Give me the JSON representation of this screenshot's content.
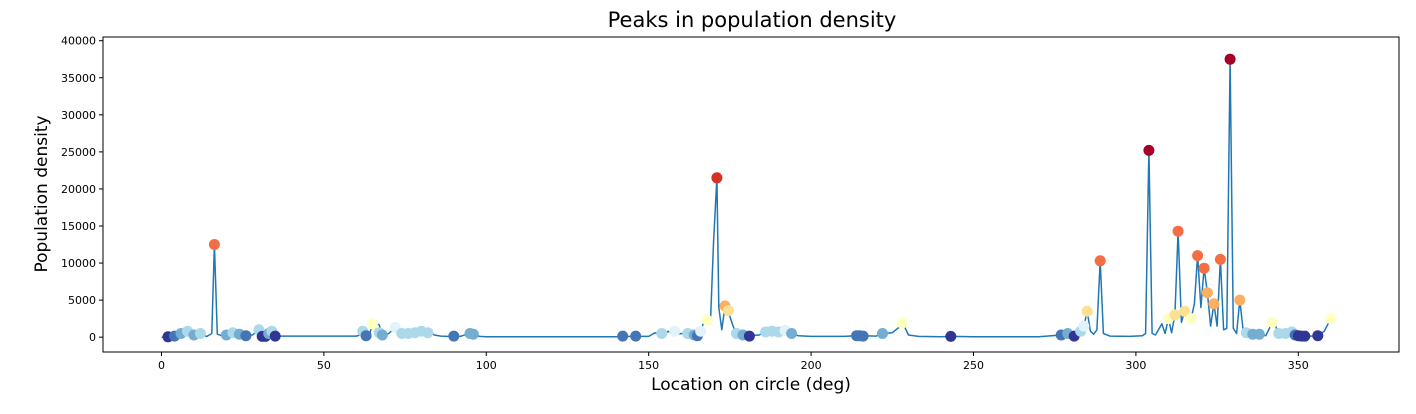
{
  "chart_data": {
    "type": "line",
    "title": "Peaks in population density",
    "xlabel": "Location on circle (deg)",
    "ylabel": "Population density",
    "xlim": [
      -18,
      381
    ],
    "ylim": [
      -2000,
      40500
    ],
    "x_ticks": [
      0,
      50,
      100,
      150,
      200,
      250,
      300,
      350
    ],
    "y_ticks": [
      0,
      5000,
      10000,
      15000,
      20000,
      25000,
      30000,
      35000,
      40000
    ],
    "grid": false,
    "line_color": "#1f77b4",
    "series": [
      {
        "values": [
          [
            0,
            0
          ],
          [
            2,
            100
          ],
          [
            4,
            200
          ],
          [
            6,
            600
          ],
          [
            8,
            400
          ],
          [
            10,
            150
          ],
          [
            12,
            300
          ],
          [
            14,
            100
          ],
          [
            15.5,
            500
          ],
          [
            16.3,
            12500
          ],
          [
            17.2,
            400
          ],
          [
            18.5,
            200
          ],
          [
            20,
            300
          ],
          [
            22,
            500
          ],
          [
            24,
            300
          ],
          [
            26,
            200
          ],
          [
            28,
            300
          ],
          [
            30,
            1000
          ],
          [
            31,
            100
          ],
          [
            33,
            200
          ],
          [
            34,
            800
          ],
          [
            35,
            100
          ],
          [
            36,
            150
          ],
          [
            60,
            150
          ],
          [
            62,
            400
          ],
          [
            64,
            300
          ],
          [
            65,
            1800
          ],
          [
            67,
            1700
          ],
          [
            68,
            300
          ],
          [
            70,
            500
          ],
          [
            72,
            1300
          ],
          [
            74,
            500
          ],
          [
            76,
            400
          ],
          [
            78,
            600
          ],
          [
            80,
            500
          ],
          [
            82,
            900
          ],
          [
            84,
            300
          ],
          [
            86,
            150
          ],
          [
            88,
            100
          ],
          [
            90,
            150
          ],
          [
            92,
            100
          ],
          [
            94,
            400
          ],
          [
            96,
            300
          ],
          [
            98,
            100
          ],
          [
            100,
            50
          ],
          [
            140,
            50
          ],
          [
            142,
            100
          ],
          [
            145,
            100
          ],
          [
            150,
            100
          ],
          [
            152,
            600
          ],
          [
            154,
            200
          ],
          [
            156,
            800
          ],
          [
            158,
            300
          ],
          [
            160,
            500
          ],
          [
            162,
            400
          ],
          [
            164,
            300
          ],
          [
            165,
            200
          ],
          [
            166,
            800
          ],
          [
            167,
            2100
          ],
          [
            168,
            2300
          ],
          [
            169,
            1800
          ],
          [
            170,
            13000
          ],
          [
            171,
            21500
          ],
          [
            171.6,
            4000
          ],
          [
            172.5,
            1000
          ],
          [
            173.5,
            4200
          ],
          [
            174.5,
            3600
          ],
          [
            175,
            2800
          ],
          [
            176,
            1500
          ],
          [
            177,
            400
          ],
          [
            179,
            300
          ],
          [
            181,
            200
          ],
          [
            184,
            300
          ],
          [
            186,
            700
          ],
          [
            188,
            800
          ],
          [
            190,
            600
          ],
          [
            192,
            900
          ],
          [
            194,
            500
          ],
          [
            196,
            200
          ],
          [
            200,
            100
          ],
          [
            210,
            100
          ],
          [
            214,
            200
          ],
          [
            216,
            200
          ],
          [
            220,
            150
          ],
          [
            222,
            500
          ],
          [
            225,
            600
          ],
          [
            227,
            1300
          ],
          [
            228,
            1900
          ],
          [
            229,
            1200
          ],
          [
            230,
            300
          ],
          [
            233,
            100
          ],
          [
            240,
            50
          ],
          [
            243,
            100
          ],
          [
            250,
            50
          ],
          [
            270,
            50
          ],
          [
            277,
            300
          ],
          [
            279,
            500
          ],
          [
            281,
            200
          ],
          [
            283,
            400
          ],
          [
            284,
            1500
          ],
          [
            285,
            3500
          ],
          [
            286,
            800
          ],
          [
            287,
            400
          ],
          [
            288,
            1000
          ],
          [
            289,
            10300
          ],
          [
            290,
            500
          ],
          [
            292,
            150
          ],
          [
            298,
            100
          ],
          [
            302,
            200
          ],
          [
            303,
            500
          ],
          [
            304,
            25200
          ],
          [
            305,
            500
          ],
          [
            306,
            300
          ],
          [
            308,
            1800
          ],
          [
            309,
            500
          ],
          [
            310,
            2500
          ],
          [
            311,
            600
          ],
          [
            312,
            3000
          ],
          [
            313,
            14300
          ],
          [
            314,
            2000
          ],
          [
            315,
            3500
          ],
          [
            316,
            2800
          ],
          [
            317,
            2500
          ],
          [
            318,
            4500
          ],
          [
            319,
            11000
          ],
          [
            320,
            4000
          ],
          [
            321,
            9300
          ],
          [
            322,
            6000
          ],
          [
            323,
            1500
          ],
          [
            324,
            4500
          ],
          [
            325,
            1500
          ],
          [
            326,
            10500
          ],
          [
            327,
            1000
          ],
          [
            328,
            1200
          ],
          [
            329,
            37500
          ],
          [
            330,
            1200
          ],
          [
            331,
            500
          ],
          [
            332,
            5000
          ],
          [
            333,
            1000
          ],
          [
            334,
            600
          ],
          [
            336,
            400
          ],
          [
            338,
            400
          ],
          [
            340,
            200
          ],
          [
            342,
            2000
          ],
          [
            343,
            1500
          ],
          [
            344,
            400
          ],
          [
            346,
            500
          ],
          [
            348,
            700
          ],
          [
            349,
            300
          ],
          [
            350,
            200
          ],
          [
            352,
            100
          ],
          [
            354,
            150
          ],
          [
            356,
            200
          ],
          [
            358,
            800
          ],
          [
            360,
            2500
          ]
        ]
      }
    ],
    "peaks": [
      {
        "x": 2,
        "y": 50,
        "color": "#313695"
      },
      {
        "x": 4,
        "y": 150,
        "color": "#4575b4"
      },
      {
        "x": 6,
        "y": 500,
        "color": "#74add1"
      },
      {
        "x": 8,
        "y": 800,
        "color": "#abd9e9"
      },
      {
        "x": 10,
        "y": 300,
        "color": "#74add1"
      },
      {
        "x": 12,
        "y": 500,
        "color": "#abd9e9"
      },
      {
        "x": 16.3,
        "y": 12500,
        "color": "#f46d43"
      },
      {
        "x": 20,
        "y": 300,
        "color": "#74add1"
      },
      {
        "x": 22,
        "y": 600,
        "color": "#abd9e9"
      },
      {
        "x": 24,
        "y": 400,
        "color": "#74add1"
      },
      {
        "x": 26,
        "y": 200,
        "color": "#4575b4"
      },
      {
        "x": 30,
        "y": 1000,
        "color": "#abd9e9"
      },
      {
        "x": 31,
        "y": 100,
        "color": "#313695"
      },
      {
        "x": 32,
        "y": 100,
        "color": "#313695"
      },
      {
        "x": 33,
        "y": 500,
        "color": "#74add1"
      },
      {
        "x": 34,
        "y": 800,
        "color": "#abd9e9"
      },
      {
        "x": 35,
        "y": 150,
        "color": "#313695"
      },
      {
        "x": 62,
        "y": 800,
        "color": "#abd9e9"
      },
      {
        "x": 63,
        "y": 200,
        "color": "#4575b4"
      },
      {
        "x": 65,
        "y": 1800,
        "color": "#ffffbf"
      },
      {
        "x": 67,
        "y": 600,
        "color": "#abd9e9"
      },
      {
        "x": 68,
        "y": 300,
        "color": "#74add1"
      },
      {
        "x": 72,
        "y": 1300,
        "color": "#e0f3f8"
      },
      {
        "x": 74,
        "y": 500,
        "color": "#abd9e9"
      },
      {
        "x": 76,
        "y": 500,
        "color": "#abd9e9"
      },
      {
        "x": 78,
        "y": 600,
        "color": "#abd9e9"
      },
      {
        "x": 80,
        "y": 800,
        "color": "#abd9e9"
      },
      {
        "x": 82,
        "y": 600,
        "color": "#abd9e9"
      },
      {
        "x": 90,
        "y": 150,
        "color": "#4575b4"
      },
      {
        "x": 95,
        "y": 500,
        "color": "#74add1"
      },
      {
        "x": 96,
        "y": 400,
        "color": "#74add1"
      },
      {
        "x": 142,
        "y": 150,
        "color": "#4575b4"
      },
      {
        "x": 146,
        "y": 150,
        "color": "#4575b4"
      },
      {
        "x": 154,
        "y": 500,
        "color": "#abd9e9"
      },
      {
        "x": 158,
        "y": 800,
        "color": "#e0f3f8"
      },
      {
        "x": 162,
        "y": 500,
        "color": "#abd9e9"
      },
      {
        "x": 164,
        "y": 300,
        "color": "#74add1"
      },
      {
        "x": 165,
        "y": 200,
        "color": "#4575b4"
      },
      {
        "x": 166,
        "y": 800,
        "color": "#e0f3f8"
      },
      {
        "x": 168,
        "y": 2300,
        "color": "#ffffbf"
      },
      {
        "x": 171,
        "y": 21500,
        "color": "#d73027"
      },
      {
        "x": 173.5,
        "y": 4200,
        "color": "#fdae61"
      },
      {
        "x": 174.5,
        "y": 3600,
        "color": "#fee090"
      },
      {
        "x": 177,
        "y": 500,
        "color": "#abd9e9"
      },
      {
        "x": 179,
        "y": 300,
        "color": "#74add1"
      },
      {
        "x": 181,
        "y": 150,
        "color": "#313695"
      },
      {
        "x": 186,
        "y": 700,
        "color": "#abd9e9"
      },
      {
        "x": 188,
        "y": 800,
        "color": "#abd9e9"
      },
      {
        "x": 190,
        "y": 700,
        "color": "#abd9e9"
      },
      {
        "x": 192,
        "y": 900,
        "color": "#e0f3f8"
      },
      {
        "x": 194,
        "y": 500,
        "color": "#74add1"
      },
      {
        "x": 214,
        "y": 200,
        "color": "#4575b4"
      },
      {
        "x": 215,
        "y": 200,
        "color": "#4575b4"
      },
      {
        "x": 216,
        "y": 150,
        "color": "#4575b4"
      },
      {
        "x": 222,
        "y": 500,
        "color": "#74add1"
      },
      {
        "x": 228,
        "y": 1900,
        "color": "#ffffbf"
      },
      {
        "x": 243,
        "y": 100,
        "color": "#313695"
      },
      {
        "x": 277,
        "y": 300,
        "color": "#4575b4"
      },
      {
        "x": 279,
        "y": 500,
        "color": "#74add1"
      },
      {
        "x": 281,
        "y": 150,
        "color": "#313695"
      },
      {
        "x": 283,
        "y": 800,
        "color": "#abd9e9"
      },
      {
        "x": 284,
        "y": 1500,
        "color": "#e0f3f8"
      },
      {
        "x": 285,
        "y": 3500,
        "color": "#fee090"
      },
      {
        "x": 289,
        "y": 10300,
        "color": "#f46d43"
      },
      {
        "x": 304,
        "y": 25200,
        "color": "#a50026"
      },
      {
        "x": 310,
        "y": 2500,
        "color": "#ffffbf"
      },
      {
        "x": 312,
        "y": 3000,
        "color": "#fee090"
      },
      {
        "x": 313,
        "y": 14300,
        "color": "#f46d43"
      },
      {
        "x": 315,
        "y": 3500,
        "color": "#fee090"
      },
      {
        "x": 317,
        "y": 2500,
        "color": "#ffffbf"
      },
      {
        "x": 319,
        "y": 11000,
        "color": "#f46d43"
      },
      {
        "x": 321,
        "y": 9300,
        "color": "#f46d43"
      },
      {
        "x": 322,
        "y": 6000,
        "color": "#fdae61"
      },
      {
        "x": 324,
        "y": 4500,
        "color": "#fdae61"
      },
      {
        "x": 326,
        "y": 10500,
        "color": "#f46d43"
      },
      {
        "x": 329,
        "y": 37500,
        "color": "#a50026"
      },
      {
        "x": 332,
        "y": 5000,
        "color": "#fdae61"
      },
      {
        "x": 334,
        "y": 600,
        "color": "#abd9e9"
      },
      {
        "x": 336,
        "y": 400,
        "color": "#74add1"
      },
      {
        "x": 338,
        "y": 400,
        "color": "#74add1"
      },
      {
        "x": 342,
        "y": 2000,
        "color": "#ffffbf"
      },
      {
        "x": 344,
        "y": 500,
        "color": "#abd9e9"
      },
      {
        "x": 346,
        "y": 500,
        "color": "#abd9e9"
      },
      {
        "x": 348,
        "y": 700,
        "color": "#abd9e9"
      },
      {
        "x": 349,
        "y": 300,
        "color": "#4575b4"
      },
      {
        "x": 350,
        "y": 200,
        "color": "#313695"
      },
      {
        "x": 351,
        "y": 150,
        "color": "#313695"
      },
      {
        "x": 352,
        "y": 150,
        "color": "#313695"
      },
      {
        "x": 356,
        "y": 200,
        "color": "#313695"
      },
      {
        "x": 360,
        "y": 2500,
        "color": "#ffffbf"
      }
    ]
  }
}
